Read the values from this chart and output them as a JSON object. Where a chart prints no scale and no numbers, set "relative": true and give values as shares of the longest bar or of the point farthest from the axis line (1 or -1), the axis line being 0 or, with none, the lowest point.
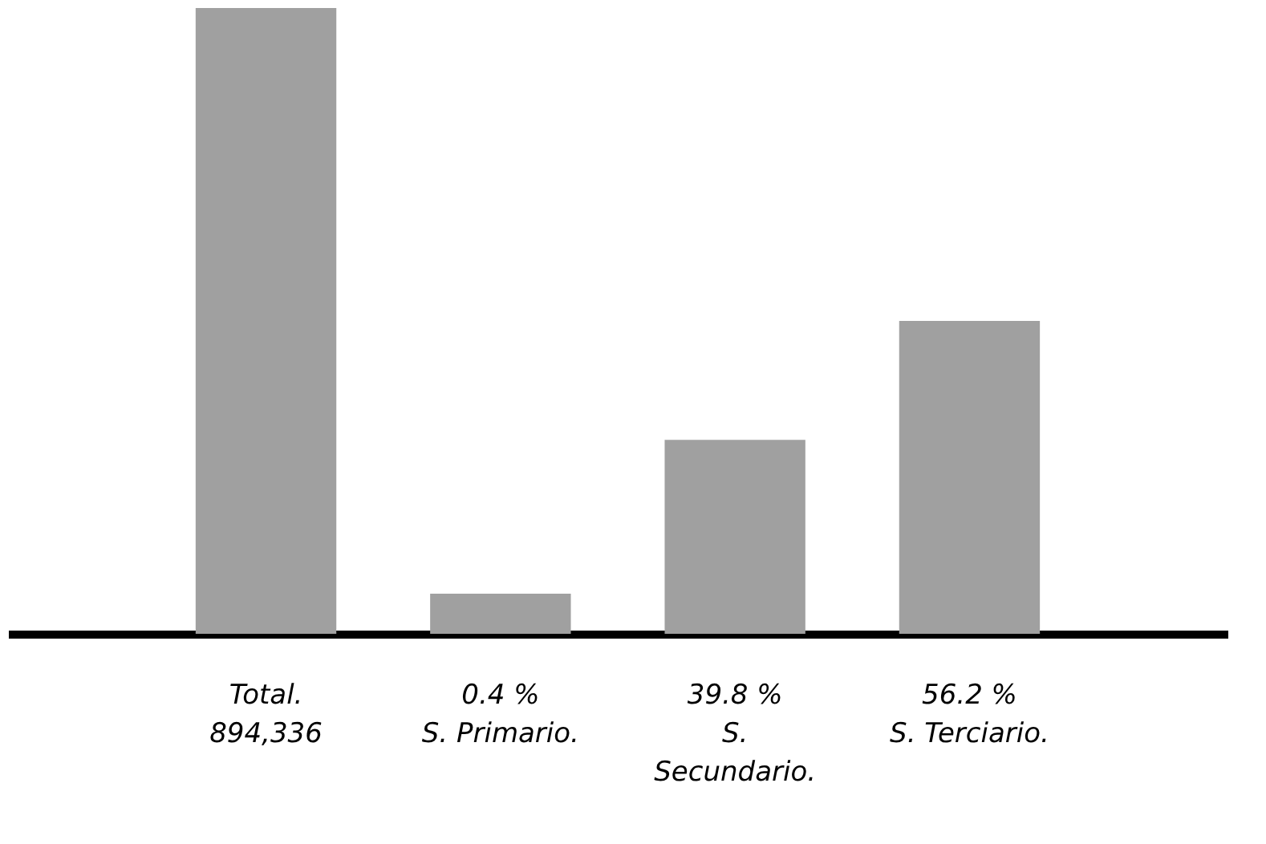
{
  "chart_data": {
    "type": "bar",
    "relative": true,
    "categories": [
      "Total.\n894,336",
      "0.4 %\nS. Primario.",
      "39.8 %\nS.\nSecundario.",
      "56.2 %\nS. Terciario."
    ],
    "values": [
      1,
      0.064,
      0.31,
      0.5
    ],
    "color": "#a0a0a0",
    "grid": false
  }
}
